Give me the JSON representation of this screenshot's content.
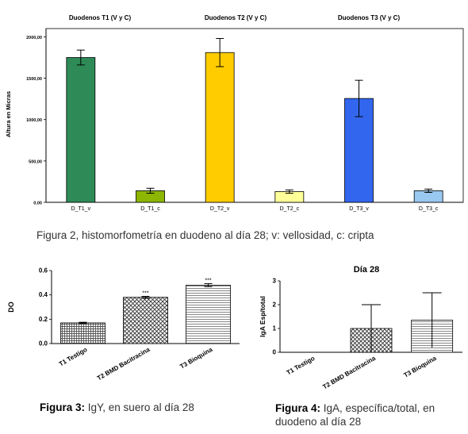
{
  "chart_data": [
    {
      "id": "fig2",
      "type": "bar",
      "group_titles": [
        "Duodenos T1 (V y C)",
        "Duodenos T2 (V y C)",
        "Duodenos T3 (V y C)"
      ],
      "categories": [
        "D_T1_v",
        "D_T1_c",
        "D_T2_v",
        "D_T2_c",
        "D_T3_v",
        "D_T3_c"
      ],
      "values": [
        1750,
        140,
        1810,
        130,
        1255,
        140
      ],
      "errors": [
        90,
        30,
        170,
        20,
        220,
        20
      ],
      "colors": [
        "#2E8B57",
        "#8DB600",
        "#FFCC00",
        "#FFFF99",
        "#3366EE",
        "#99C8F0"
      ],
      "ylabel": "Altura en Micras",
      "ylim": [
        0,
        2100
      ],
      "yticks": [
        0,
        500,
        1000,
        1500,
        2000
      ],
      "ytick_labels": [
        "0,00",
        "500,00",
        "1000,00",
        "1500,00",
        "2000,00"
      ],
      "caption": "Figura 2, histomorfometría en duodeno al  día 28;  v: vellosidad, c: cripta"
    },
    {
      "id": "fig3",
      "type": "bar",
      "categories": [
        "T1 Testigo",
        "T2 BMD Bacitracina",
        "T3 Bioquina"
      ],
      "values": [
        0.17,
        0.38,
        0.48
      ],
      "errors": [
        0.005,
        0.008,
        0.012
      ],
      "patterns": [
        "grid",
        "crosshatch",
        "horizontal"
      ],
      "annotations": [
        "",
        "***",
        "***"
      ],
      "ylabel": "DO",
      "ylim": [
        0,
        0.6
      ],
      "yticks": [
        0.0,
        0.2,
        0.4,
        0.6
      ],
      "ytick_labels": [
        "0.0",
        "0.2",
        "0.4",
        "0.6"
      ],
      "caption_bold": "Figura 3:",
      "caption_rest": " IgY, en suero al día 28"
    },
    {
      "id": "fig4",
      "type": "bar",
      "title": "Día 28",
      "categories": [
        "T1 Testigo",
        "T2 BMD Bacitracina",
        "T3 Bioquina"
      ],
      "values": [
        0,
        1.0,
        1.35
      ],
      "errors": [
        0,
        1.0,
        1.15
      ],
      "patterns": [
        "grid",
        "crosshatch",
        "horizontal"
      ],
      "ylabel": "IgA Esp/total",
      "ylim": [
        0,
        3
      ],
      "yticks": [
        0,
        1,
        2,
        3
      ],
      "ytick_labels": [
        "0",
        "1",
        "2",
        "3"
      ],
      "caption_bold": "Figura 4:",
      "caption_rest": " IgA, específica/total, en duodeno al día 28"
    }
  ]
}
